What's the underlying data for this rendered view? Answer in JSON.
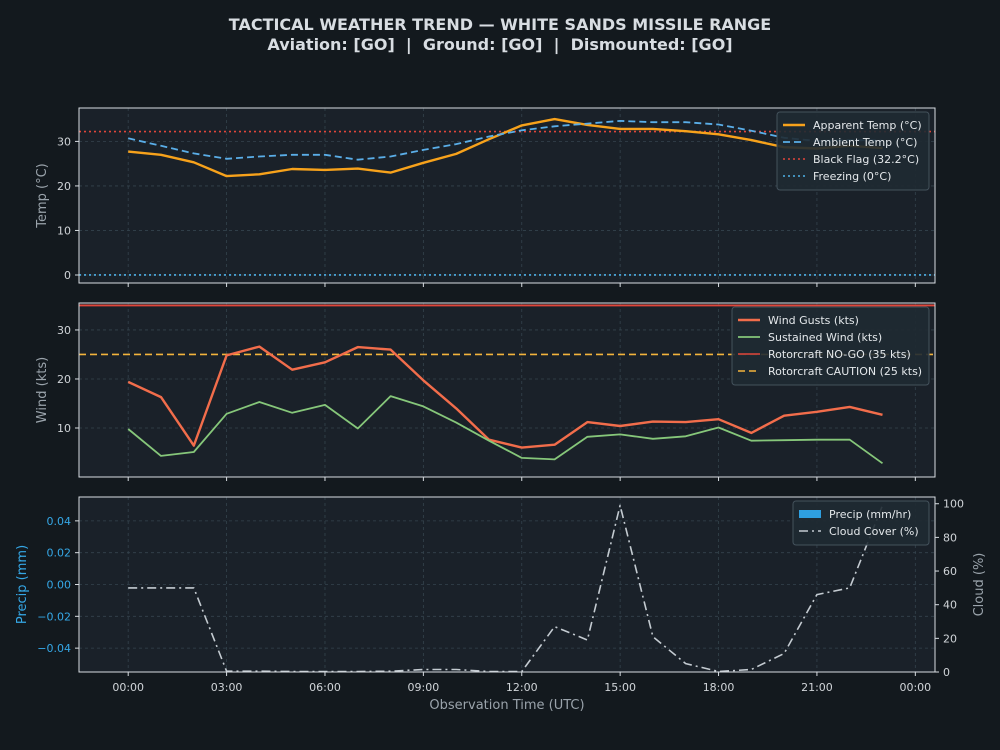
{
  "title": {
    "line1": "TACTICAL WEATHER TREND — WHITE SANDS MISSILE RANGE",
    "line2": "Aviation: [GO]  |  Ground: [GO]  |  Dismounted: [GO]"
  },
  "colors": {
    "figure_bg": "#13191e",
    "axes_bg": "#1a2129",
    "frame": "#d8dde2",
    "grid": "#34434d",
    "tick_text": "#d0d4d8",
    "label_text": "#9aa3ab",
    "precip_axis": "#35a7e6"
  },
  "chart_data": [
    {
      "id": "temp",
      "type": "line",
      "ylabel": "Temp (°C)",
      "ylim": [
        -1.8,
        37.5
      ],
      "yticks": [
        0,
        10,
        20,
        30
      ],
      "legend_position": "top-right",
      "grid": true,
      "x_hours": [
        0,
        1,
        2,
        3,
        4,
        5,
        6,
        7,
        8,
        9,
        10,
        11,
        12,
        13,
        14,
        15,
        16,
        17,
        18,
        19,
        20,
        21,
        22,
        23
      ],
      "series": [
        {
          "name": "Apparent Temp (°C)",
          "color": "#f7a21b",
          "style": "solid",
          "width": 2.4,
          "values": [
            27.7,
            27.0,
            25.3,
            22.2,
            22.6,
            23.8,
            23.6,
            23.9,
            23.0,
            25.2,
            27.2,
            30.5,
            33.6,
            35.0,
            33.7,
            32.8,
            32.8,
            32.3,
            31.6,
            30.3,
            28.7,
            28.4,
            29.0,
            28.5
          ]
        },
        {
          "name": "Ambient Temp (°C)",
          "color": "#5aaee8",
          "style": "dashed",
          "width": 1.8,
          "values": [
            30.7,
            29.0,
            27.3,
            26.1,
            26.6,
            27.0,
            27.0,
            25.9,
            26.6,
            28.1,
            29.4,
            31.1,
            32.5,
            33.4,
            34.0,
            34.6,
            34.3,
            34.3,
            33.8,
            32.4,
            30.8,
            30.1,
            30.3,
            30.2
          ]
        }
      ],
      "reference_lines": [
        {
          "name": "Black Flag (32.2°C)",
          "value": 32.2,
          "color": "#e0463a",
          "style": "dotted"
        },
        {
          "name": "Freezing (0°C)",
          "value": 0,
          "color": "#4fb3e8",
          "style": "dotted"
        }
      ]
    },
    {
      "id": "wind",
      "type": "line",
      "ylabel": "Wind (kts)",
      "ylim": [
        0,
        35.5
      ],
      "yticks": [
        10,
        20,
        30
      ],
      "legend_position": "top-right",
      "grid": true,
      "x_hours": [
        0,
        1,
        2,
        3,
        4,
        5,
        6,
        7,
        8,
        9,
        10,
        11,
        12,
        13,
        14,
        15,
        16,
        17,
        18,
        19,
        20,
        21,
        22,
        23
      ],
      "series": [
        {
          "name": "Wind Gusts (kts)",
          "color": "#f26d4b",
          "style": "solid",
          "width": 2.4,
          "values": [
            19.4,
            16.3,
            6.4,
            24.8,
            26.6,
            21.9,
            23.4,
            26.5,
            26.0,
            19.7,
            14.0,
            7.6,
            6.0,
            6.6,
            11.2,
            10.4,
            11.3,
            11.2,
            11.8,
            9.0,
            12.5,
            13.3,
            14.3,
            12.7
          ]
        },
        {
          "name": "Sustained Wind (kts)",
          "color": "#86c77a",
          "style": "solid",
          "width": 1.8,
          "values": [
            9.8,
            4.3,
            5.1,
            12.9,
            15.3,
            13.1,
            14.7,
            9.9,
            16.5,
            14.4,
            11.1,
            7.4,
            3.9,
            3.6,
            8.2,
            8.7,
            7.8,
            8.3,
            10.1,
            7.4,
            7.5,
            7.6,
            7.6,
            2.8
          ]
        }
      ],
      "reference_lines": [
        {
          "name": "Rotorcraft NO-GO (35 kts)",
          "value": 35,
          "color": "#e0463a",
          "style": "solid"
        },
        {
          "name": "Rotorcraft CAUTION (25 kts)",
          "value": 25,
          "color": "#f3b43c",
          "style": "dashed"
        }
      ]
    },
    {
      "id": "precip",
      "type": "line",
      "ylabel": "Precip (mm)",
      "ylabel_right": "Cloud (%)",
      "xlabel": "Observation Time (UTC)",
      "ylim": [
        -0.055,
        0.055
      ],
      "yticks": [
        -0.04,
        -0.02,
        0.0,
        0.02,
        0.04
      ],
      "ytick_labels": [
        "−0.04",
        "−0.02",
        "0.00",
        "0.02",
        "0.04"
      ],
      "ylim_right": [
        0,
        104
      ],
      "yticks_right": [
        0,
        20,
        40,
        60,
        80,
        100
      ],
      "xlim": [
        -1.5,
        24.6
      ],
      "xticks": [
        0,
        3,
        6,
        9,
        12,
        15,
        18,
        21,
        24
      ],
      "xtick_labels": [
        "00:00",
        "03:00",
        "06:00",
        "09:00",
        "12:00",
        "15:00",
        "18:00",
        "21:00",
        "00:00"
      ],
      "legend_position": "top-right",
      "grid": true,
      "x_hours": [
        0,
        1,
        2,
        3,
        4,
        5,
        6,
        7,
        8,
        9,
        10,
        11,
        12,
        13,
        14,
        15,
        16,
        17,
        18,
        19,
        20,
        21,
        22,
        23
      ],
      "series": [
        {
          "name": "Precip (mm/hr)",
          "color": "#2e9fe0",
          "style": "bar",
          "values": [
            0,
            0,
            0,
            0,
            0,
            0,
            0,
            0,
            0,
            0,
            0,
            0,
            0,
            0,
            0,
            0,
            0,
            0,
            0,
            0,
            0,
            0,
            0,
            0
          ]
        },
        {
          "name": "Cloud Cover (%)",
          "color": "#c4cbd1",
          "style": "dashdot",
          "width": 1.6,
          "axis": "right",
          "values": [
            50,
            50,
            50,
            0.5,
            0.5,
            0.3,
            0.3,
            0.3,
            0.5,
            1.5,
            1.5,
            0.3,
            0.3,
            27,
            19,
            99,
            21,
            5,
            0.3,
            1.5,
            11,
            46,
            50,
            99
          ]
        }
      ]
    }
  ]
}
